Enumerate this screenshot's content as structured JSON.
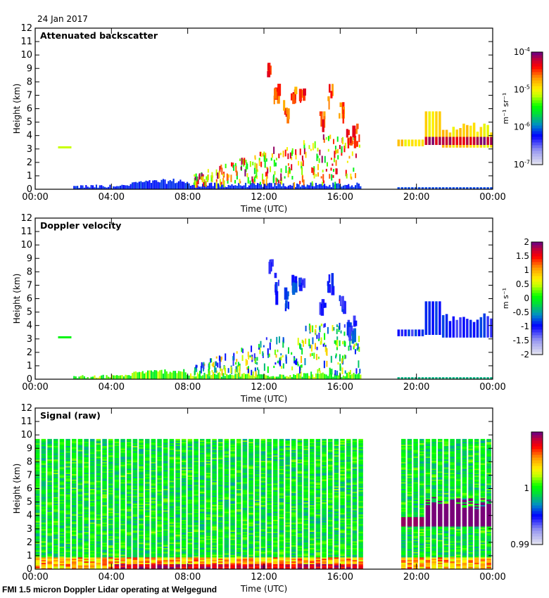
{
  "header": {
    "date": "24 Jan 2017"
  },
  "footer": {
    "caption": "FMI 1.5 micron Doppler Lidar operating at Welgegund"
  },
  "chart_data": [
    {
      "type": "heatmap",
      "title": "Attenuated backscatter",
      "xlabel": "Time (UTC)",
      "ylabel": "Height (km)",
      "xlim": [
        0,
        24
      ],
      "ylim": [
        0,
        12
      ],
      "xticks": [
        "00:00",
        "04:00",
        "08:00",
        "12:00",
        "16:00",
        "20:00",
        "00:00"
      ],
      "yticks": [
        "0",
        "1",
        "2",
        "3",
        "4",
        "5",
        "6",
        "7",
        "8",
        "9",
        "10",
        "11",
        "12"
      ],
      "colorbar": {
        "label": "m-1 sr-1",
        "scale": "log",
        "range": [
          1e-07,
          0.0001
        ],
        "ticks": [
          "10-7",
          "10-6",
          "10-5",
          "10-4"
        ]
      },
      "features": [
        {
          "desc": "aerosol near surface",
          "t_start": 2.0,
          "t_end": 17.0,
          "h_top": 0.8,
          "level": 0.25
        },
        {
          "desc": "isolated returns",
          "t_start": 1.2,
          "t_end": 1.9,
          "h_top": 3.2,
          "h_bottom": 3.0,
          "level": 0.6
        },
        {
          "desc": "scattered clouds",
          "t_start": 8.5,
          "t_end": 17.0,
          "h_top": 4.0,
          "h_bottom": 0.5,
          "level": 0.7
        },
        {
          "desc": "high cloud",
          "t_start": 12.0,
          "t_end": 16.5,
          "h_top": 9.5,
          "h_bottom": 3.0,
          "level": 0.8
        },
        {
          "desc": "evening cloud layer",
          "t_start": 19.0,
          "t_end": 24.0,
          "h_top": 5.8,
          "h_bottom": 3.1,
          "level": 0.8
        }
      ],
      "data_gap": [
        17.2,
        18.9
      ]
    },
    {
      "type": "heatmap",
      "title": "Doppler velocity",
      "xlabel": "Time (UTC)",
      "ylabel": "Height (km)",
      "xlim": [
        0,
        24
      ],
      "ylim": [
        0,
        12
      ],
      "xticks": [
        "00:00",
        "04:00",
        "08:00",
        "12:00",
        "16:00",
        "20:00",
        "00:00"
      ],
      "yticks": [
        "0",
        "1",
        "2",
        "3",
        "4",
        "5",
        "6",
        "7",
        "8",
        "9",
        "10",
        "11",
        "12"
      ],
      "colorbar": {
        "label": "m s-1",
        "scale": "linear",
        "range": [
          -2,
          2
        ],
        "ticks": [
          "2",
          "1.5",
          "1",
          "0.5",
          "0",
          "-0.5",
          "-1",
          "-1.5",
          "-2"
        ]
      },
      "data_gap": [
        17.2,
        18.9
      ]
    },
    {
      "type": "heatmap",
      "title": "Signal (raw)",
      "xlabel": "Time (UTC)",
      "ylabel": "Height (km)",
      "xlim": [
        0,
        24
      ],
      "ylim": [
        0,
        12
      ],
      "xticks": [
        "00:00",
        "04:00",
        "08:00",
        "12:00",
        "16:00",
        "20:00",
        "00:00"
      ],
      "yticks": [
        "0",
        "1",
        "2",
        "3",
        "4",
        "5",
        "6",
        "7",
        "8",
        "9",
        "10",
        "11",
        "12"
      ],
      "colorbar": {
        "label": "",
        "scale": "linear",
        "range": [
          0.99,
          1.01
        ],
        "ticks": [
          "1",
          "0.99"
        ]
      },
      "data_top_km": 9.6,
      "data_gap": [
        17.2,
        18.9
      ]
    }
  ]
}
